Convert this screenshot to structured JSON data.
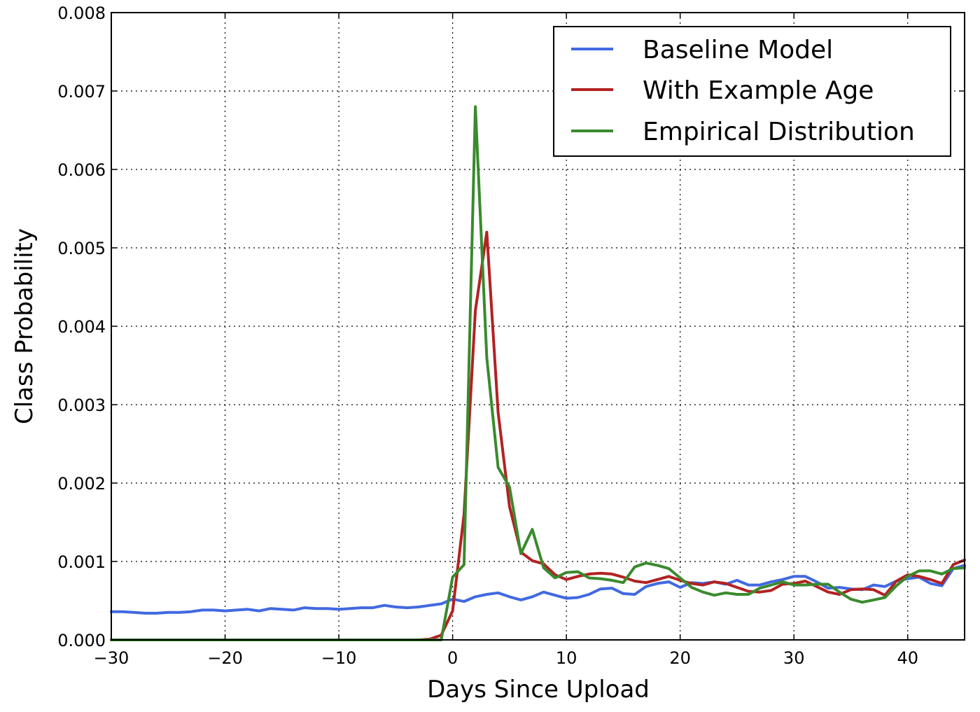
{
  "chart_data": {
    "type": "line",
    "xlabel": "Days Since Upload",
    "ylabel": "Class Probability",
    "xlim": [
      -30,
      45
    ],
    "ylim": [
      0,
      0.008
    ],
    "grid": true,
    "legend_position": "top-right",
    "x_ticks": [
      -30,
      -20,
      -10,
      0,
      10,
      20,
      30,
      40
    ],
    "x_tick_labels": [
      "−30",
      "−20",
      "−10",
      "0",
      "10",
      "20",
      "30",
      "40"
    ],
    "y_ticks": [
      0,
      0.001,
      0.002,
      0.003,
      0.004,
      0.005,
      0.006,
      0.007,
      0.008
    ],
    "y_tick_labels": [
      "0.000",
      "0.001",
      "0.002",
      "0.003",
      "0.004",
      "0.005",
      "0.006",
      "0.007",
      "0.008"
    ],
    "x": [
      -30,
      -29,
      -28,
      -27,
      -26,
      -25,
      -24,
      -23,
      -22,
      -21,
      -20,
      -19,
      -18,
      -17,
      -16,
      -15,
      -14,
      -13,
      -12,
      -11,
      -10,
      -9,
      -8,
      -7,
      -6,
      -5,
      -4,
      -3,
      -2,
      -1,
      0,
      1,
      2,
      3,
      4,
      5,
      6,
      7,
      8,
      9,
      10,
      11,
      12,
      13,
      14,
      15,
      16,
      17,
      18,
      19,
      20,
      21,
      22,
      23,
      24,
      25,
      26,
      27,
      28,
      29,
      30,
      31,
      32,
      33,
      34,
      35,
      36,
      37,
      38,
      39,
      40,
      41,
      42,
      43,
      44,
      45
    ],
    "series": [
      {
        "name": "Baseline Model",
        "color": "#4169e1",
        "values": [
          0.00036,
          0.00036,
          0.00035,
          0.00034,
          0.00034,
          0.00035,
          0.00035,
          0.00036,
          0.00038,
          0.00038,
          0.00037,
          0.00038,
          0.00039,
          0.00037,
          0.0004,
          0.00039,
          0.00038,
          0.00041,
          0.0004,
          0.0004,
          0.00039,
          0.0004,
          0.00041,
          0.00041,
          0.00044,
          0.00042,
          0.00041,
          0.00042,
          0.00044,
          0.00046,
          0.00052,
          0.00049,
          0.00055,
          0.00058,
          0.0006,
          0.00055,
          0.00051,
          0.00055,
          0.00061,
          0.00057,
          0.00053,
          0.00054,
          0.00058,
          0.00065,
          0.00066,
          0.00059,
          0.00058,
          0.00068,
          0.00072,
          0.00074,
          0.00067,
          0.00073,
          0.00072,
          0.00074,
          0.00071,
          0.00076,
          0.0007,
          0.0007,
          0.00074,
          0.00077,
          0.00081,
          0.00081,
          0.00074,
          0.00066,
          0.00067,
          0.00065,
          0.00064,
          0.0007,
          0.00068,
          0.00075,
          0.00078,
          0.0008,
          0.00072,
          0.00069,
          0.00091,
          0.00095
        ]
      },
      {
        "name": "With Example Age",
        "color": "#b22222",
        "values": [
          0,
          0,
          0,
          0,
          0,
          0,
          0,
          0,
          0,
          0,
          0,
          0,
          0,
          0,
          0,
          0,
          0,
          0,
          0,
          0,
          0,
          0,
          0,
          0,
          0,
          0,
          0,
          0,
          1e-05,
          6e-05,
          0.00037,
          0.0016,
          0.0042,
          0.0052,
          0.0029,
          0.0017,
          0.00112,
          0.00101,
          0.00097,
          0.00083,
          0.00077,
          0.00081,
          0.00084,
          0.00085,
          0.00084,
          0.0008,
          0.00075,
          0.00073,
          0.00077,
          0.00081,
          0.00076,
          0.00072,
          0.0007,
          0.00074,
          0.00072,
          0.00067,
          0.00062,
          0.00061,
          0.00063,
          0.00071,
          0.00072,
          0.00075,
          0.00068,
          0.00061,
          0.00058,
          0.00064,
          0.00065,
          0.00064,
          0.00057,
          0.00075,
          0.00083,
          0.00081,
          0.00077,
          0.00072,
          0.00096,
          0.00102
        ]
      },
      {
        "name": "Empirical Distribution",
        "color": "#3a8a2e",
        "values": [
          0,
          0,
          0,
          0,
          0,
          0,
          0,
          0,
          0,
          0,
          0,
          0,
          0,
          0,
          0,
          0,
          0,
          0,
          0,
          0,
          0,
          0,
          0,
          0,
          0,
          0,
          0,
          0,
          0,
          0,
          0.0008,
          0.00096,
          0.0068,
          0.0036,
          0.0022,
          0.00195,
          0.0011,
          0.00141,
          0.00092,
          0.00079,
          0.00086,
          0.00087,
          0.00079,
          0.00078,
          0.00076,
          0.00073,
          0.00093,
          0.00098,
          0.00095,
          0.00091,
          0.00079,
          0.00067,
          0.00061,
          0.00057,
          0.0006,
          0.00058,
          0.00058,
          0.00066,
          0.0007,
          0.00074,
          0.0007,
          0.0007,
          0.00071,
          0.00071,
          0.00061,
          0.00052,
          0.00048,
          0.00051,
          0.00054,
          0.00069,
          0.00081,
          0.00088,
          0.00088,
          0.00084,
          0.00091,
          0.00092
        ]
      }
    ]
  }
}
